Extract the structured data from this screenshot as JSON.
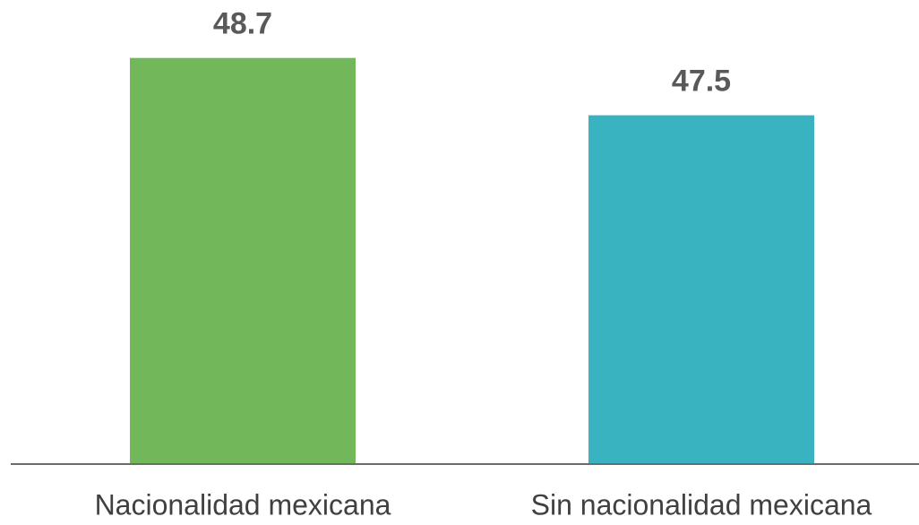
{
  "chart_data": {
    "type": "bar",
    "categories": [
      "Nacionalidad mexicana",
      "Sin nacionalidad mexicana"
    ],
    "values": [
      48.7,
      47.5
    ],
    "colors": [
      "#72b85a",
      "#3ab3c1"
    ],
    "ylim": [
      40.2,
      49.5
    ]
  }
}
